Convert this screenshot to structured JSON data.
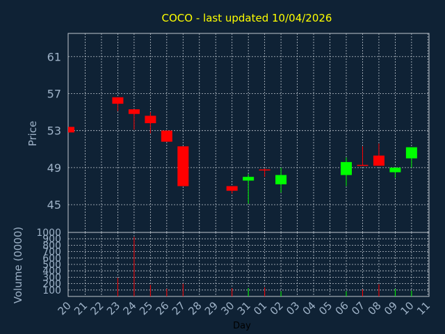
{
  "chart_data": {
    "type": "candlestick",
    "title": "COCO - last updated 10/04/2026",
    "colors": {
      "background": "#0f2235",
      "plot_background": "#0f2235",
      "grid": "#c0c8d0",
      "axis_text": "#9fb3c8",
      "title": "#ffff00",
      "up": "#00ff00",
      "down": "#ff0000"
    },
    "grid": true,
    "x_label": "Day",
    "x_ticks": [
      "20",
      "21",
      "22",
      "23",
      "24",
      "25",
      "26",
      "27",
      "28",
      "29",
      "30",
      "31",
      "01",
      "02",
      "03",
      "04",
      "05",
      "06",
      "07",
      "08",
      "09",
      "10",
      "11"
    ],
    "price_panel": {
      "ylabel": "Price",
      "ylim": [
        42,
        63.5
      ],
      "yticks": [
        45,
        49,
        53,
        57,
        61
      ]
    },
    "volume_panel": {
      "ylabel": "Volume (0000)",
      "ylim": [
        0,
        1000
      ],
      "yticks": [
        100,
        200,
        300,
        400,
        500,
        600,
        700,
        800,
        900,
        1000
      ]
    },
    "candles": [
      {
        "day": "20",
        "open": 53.4,
        "close": 52.8,
        "high": 53.4,
        "low": 52.8,
        "volume": 0
      },
      {
        "day": "23",
        "open": 56.6,
        "close": 55.9,
        "high": 56.6,
        "low": 55.1,
        "volume": 290
      },
      {
        "day": "24",
        "open": 55.3,
        "close": 54.8,
        "high": 55.3,
        "low": 53.1,
        "volume": 930
      },
      {
        "day": "25",
        "open": 54.6,
        "close": 53.8,
        "high": 55.0,
        "low": 52.7,
        "volume": 180
      },
      {
        "day": "26",
        "open": 53.0,
        "close": 51.8,
        "high": 53.0,
        "low": 51.8,
        "volume": 120
      },
      {
        "day": "27",
        "open": 51.3,
        "close": 47.0,
        "high": 51.3,
        "low": 47.0,
        "volume": 200
      },
      {
        "day": "30",
        "open": 47.0,
        "close": 46.5,
        "high": 47.0,
        "low": 46.2,
        "volume": 130
      },
      {
        "day": "31",
        "open": 47.6,
        "close": 48.0,
        "high": 48.3,
        "low": 45.1,
        "volume": 130
      },
      {
        "day": "01",
        "open": 48.8,
        "close": 48.7,
        "high": 48.9,
        "low": 48.0,
        "volume": 140
      },
      {
        "day": "02",
        "open": 47.2,
        "close": 48.2,
        "high": 49.0,
        "low": 46.3,
        "volume": 80
      },
      {
        "day": "06",
        "open": 48.2,
        "close": 49.6,
        "high": 50.1,
        "low": 47.0,
        "volume": 80
      },
      {
        "day": "07",
        "open": 49.3,
        "close": 49.2,
        "high": 51.3,
        "low": 49.2,
        "volume": 110
      },
      {
        "day": "08",
        "open": 50.3,
        "close": 49.2,
        "high": 51.6,
        "low": 49.2,
        "volume": 190
      },
      {
        "day": "09",
        "open": 48.5,
        "close": 49.0,
        "high": 49.0,
        "low": 47.9,
        "volume": 120
      },
      {
        "day": "10",
        "open": 50.0,
        "close": 51.2,
        "high": 51.2,
        "low": 49.0,
        "volume": 90
      }
    ]
  }
}
